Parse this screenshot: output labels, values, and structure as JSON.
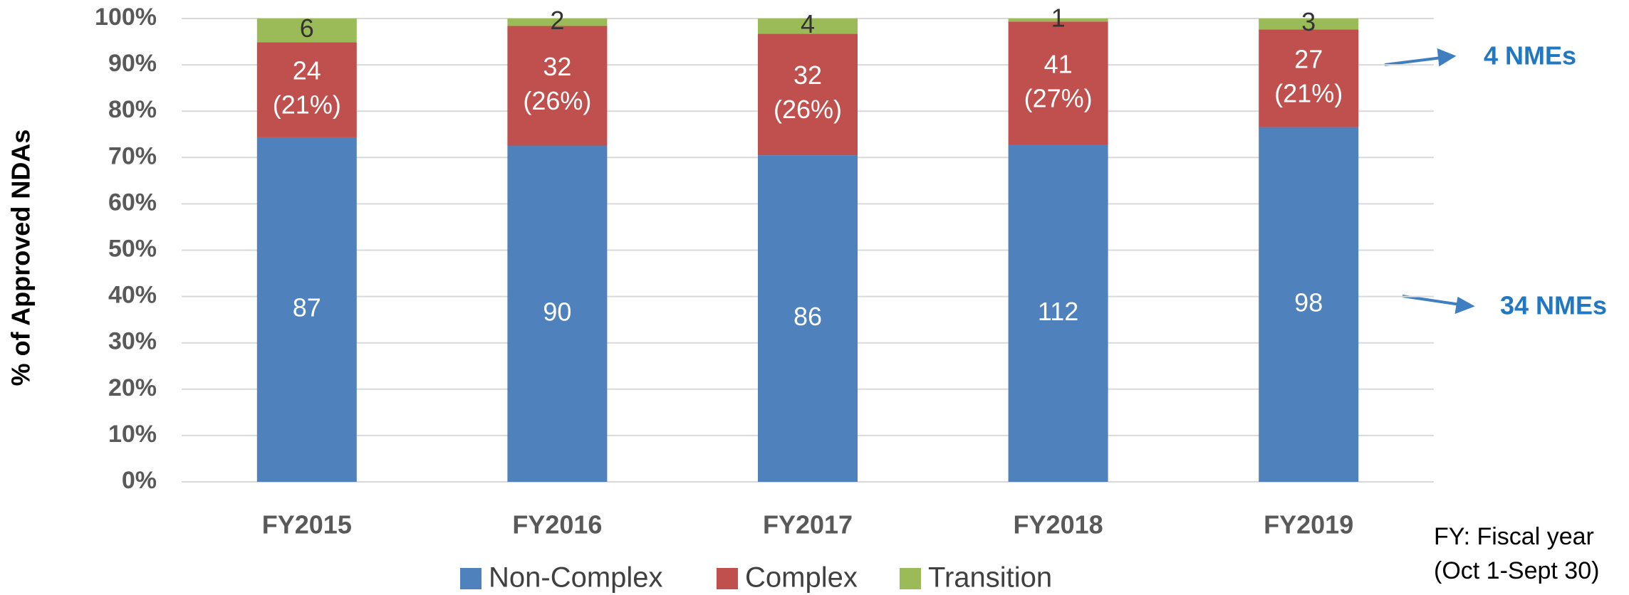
{
  "chart_data": {
    "type": "bar",
    "stacking": "percent",
    "y_label": "% of Approved NDAs",
    "categories": [
      "FY2015",
      "FY2016",
      "FY2017",
      "FY2018",
      "FY2019"
    ],
    "series": [
      {
        "name": "Non-Complex",
        "color": "#4f81bd",
        "values": [
          87,
          90,
          86,
          112,
          98
        ]
      },
      {
        "name": "Complex",
        "color": "#c0504d",
        "values": [
          24,
          32,
          32,
          41,
          27
        ],
        "percent_labels": [
          "(21%)",
          "(26%)",
          "(26%)",
          "(27%)",
          "(21%)"
        ]
      },
      {
        "name": "Transition",
        "color": "#9bbb59",
        "values": [
          6,
          2,
          4,
          1,
          3
        ]
      }
    ],
    "ylim": [
      0,
      100
    ],
    "yticks": [
      {
        "value": 0,
        "label": "0%"
      },
      {
        "value": 10,
        "label": "10%"
      },
      {
        "value": 20,
        "label": "20%"
      },
      {
        "value": 30,
        "label": "30%"
      },
      {
        "value": 40,
        "label": "40%"
      },
      {
        "value": 50,
        "label": "50%"
      },
      {
        "value": 60,
        "label": "60%"
      },
      {
        "value": 70,
        "label": "70%"
      },
      {
        "value": 80,
        "label": "80%"
      },
      {
        "value": 90,
        "label": "90%"
      },
      {
        "value": 100,
        "label": "100%"
      }
    ],
    "grid": true,
    "legend": "bottom",
    "annotations": [
      "4 NMEs",
      "34 NMEs"
    ],
    "notes": [
      "FY: Fiscal year",
      "(Oct 1-Sept 30)"
    ]
  }
}
